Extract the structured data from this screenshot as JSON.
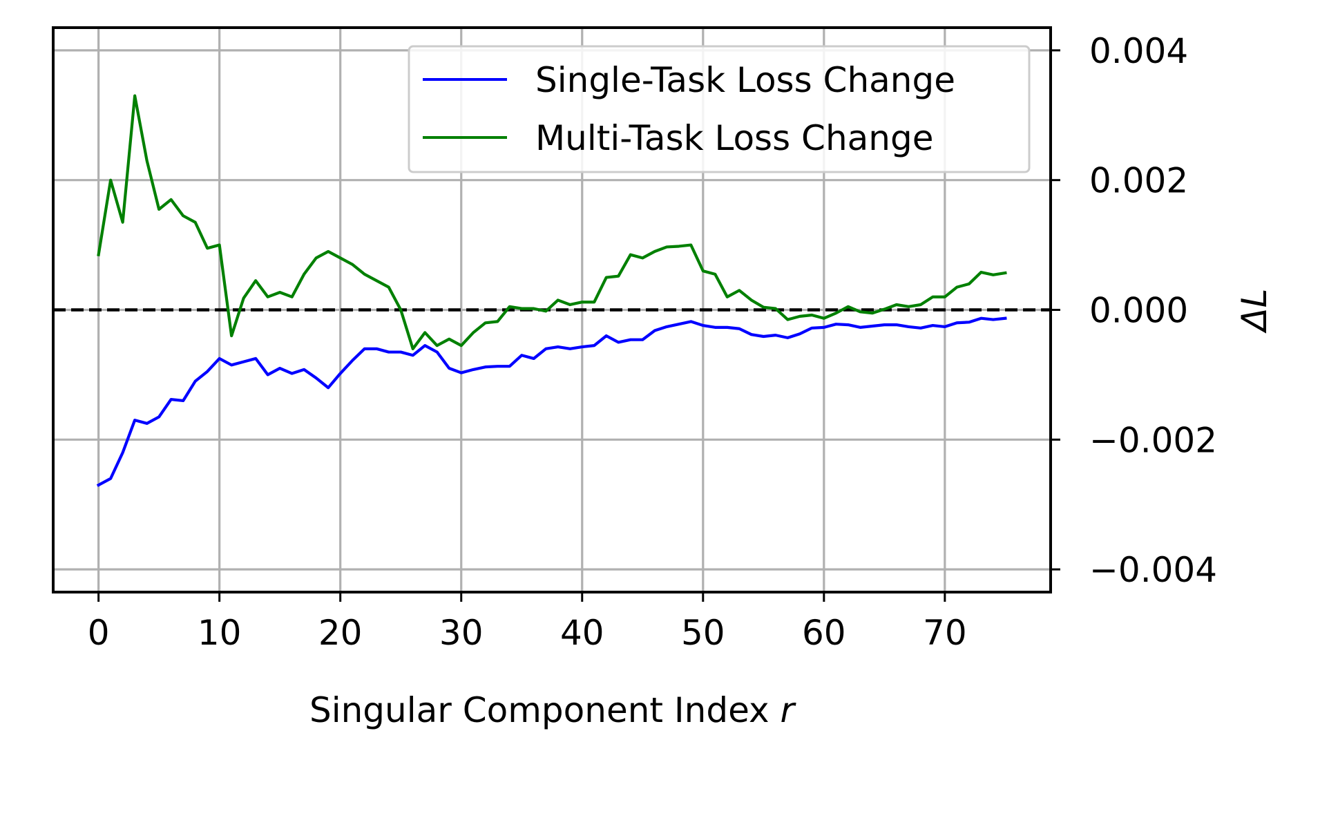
{
  "chart_data": {
    "type": "line",
    "xlabel_text": "Singular Component Index ",
    "xlabel_var": "r",
    "ylabel": "ΔL",
    "y_axis_side": "right",
    "xlim": [
      -3.75,
      78.75
    ],
    "ylim": [
      -0.00435,
      0.00435
    ],
    "xticks": [
      0,
      10,
      20,
      30,
      40,
      50,
      60,
      70
    ],
    "yticks": [
      0.004,
      0.002,
      0.0,
      -0.002,
      -0.004
    ],
    "ytick_labels": [
      "0.004",
      "0.002",
      "0.000",
      "−0.002",
      "−0.004"
    ],
    "grid": true,
    "reference_line": {
      "y": 0.0,
      "style": "dashed",
      "color": "#000000"
    },
    "legend_position": "top-right",
    "series": [
      {
        "name": "Single-Task Loss Change",
        "color": "#0000ff",
        "x": [
          0,
          1,
          2,
          3,
          4,
          5,
          6,
          7,
          8,
          9,
          10,
          11,
          12,
          13,
          14,
          15,
          16,
          17,
          18,
          19,
          20,
          21,
          22,
          23,
          24,
          25,
          26,
          27,
          28,
          29,
          30,
          31,
          32,
          33,
          34,
          35,
          36,
          37,
          38,
          39,
          40,
          41,
          42,
          43,
          44,
          45,
          46,
          47,
          48,
          49,
          50,
          51,
          52,
          53,
          54,
          55,
          56,
          57,
          58,
          59,
          60,
          61,
          62,
          63,
          64,
          65,
          66,
          67,
          68,
          69,
          70,
          71,
          72,
          73,
          74,
          75
        ],
        "values": [
          -0.0027,
          -0.0026,
          -0.0022,
          -0.0017,
          -0.00175,
          -0.00165,
          -0.00138,
          -0.0014,
          -0.0011,
          -0.00095,
          -0.00075,
          -0.00085,
          -0.0008,
          -0.00075,
          -0.001,
          -0.0009,
          -0.00098,
          -0.00092,
          -0.00105,
          -0.0012,
          -0.00098,
          -0.00078,
          -0.0006,
          -0.0006,
          -0.00065,
          -0.00065,
          -0.0007,
          -0.00055,
          -0.00065,
          -0.0009,
          -0.00097,
          -0.00092,
          -0.00088,
          -0.00087,
          -0.00087,
          -0.0007,
          -0.00075,
          -0.0006,
          -0.00057,
          -0.0006,
          -0.00057,
          -0.00055,
          -0.0004,
          -0.0005,
          -0.00046,
          -0.00046,
          -0.00032,
          -0.00026,
          -0.00022,
          -0.00018,
          -0.00024,
          -0.00027,
          -0.00027,
          -0.00029,
          -0.00038,
          -0.00041,
          -0.00039,
          -0.00043,
          -0.00037,
          -0.00028,
          -0.00027,
          -0.00022,
          -0.00023,
          -0.00027,
          -0.00025,
          -0.00023,
          -0.00023,
          -0.00026,
          -0.00028,
          -0.00024,
          -0.00026,
          -0.0002,
          -0.00019,
          -0.00013,
          -0.00015,
          -0.00013
        ]
      },
      {
        "name": "Multi-Task Loss Change",
        "color": "#008000",
        "x": [
          0,
          1,
          2,
          3,
          4,
          5,
          6,
          7,
          8,
          9,
          10,
          11,
          12,
          13,
          14,
          15,
          16,
          17,
          18,
          19,
          20,
          21,
          22,
          23,
          24,
          25,
          26,
          27,
          28,
          29,
          30,
          31,
          32,
          33,
          34,
          35,
          36,
          37,
          38,
          39,
          40,
          41,
          42,
          43,
          44,
          45,
          46,
          47,
          48,
          49,
          50,
          51,
          52,
          53,
          54,
          55,
          56,
          57,
          58,
          59,
          60,
          61,
          62,
          63,
          64,
          65,
          66,
          67,
          68,
          69,
          70,
          71,
          72,
          73,
          74,
          75
        ],
        "values": [
          0.00085,
          0.002,
          0.00135,
          0.0033,
          0.0023,
          0.00155,
          0.0017,
          0.00145,
          0.00135,
          0.00095,
          0.001,
          -0.0004,
          0.00018,
          0.00045,
          0.0002,
          0.00027,
          0.0002,
          0.00055,
          0.0008,
          0.0009,
          0.0008,
          0.0007,
          0.00055,
          0.00045,
          0.00035,
          0.0,
          -0.0006,
          -0.00035,
          -0.00055,
          -0.00045,
          -0.00055,
          -0.00035,
          -0.0002,
          -0.00018,
          5e-05,
          2e-05,
          2e-05,
          -2e-05,
          0.00015,
          8e-05,
          0.00012,
          0.00012,
          0.0005,
          0.00052,
          0.00085,
          0.0008,
          0.0009,
          0.00097,
          0.00098,
          0.001,
          0.0006,
          0.00055,
          0.0002,
          0.0003,
          0.00015,
          4e-05,
          2e-05,
          -0.00015,
          -0.0001,
          -8e-05,
          -0.00013,
          -5e-05,
          5e-05,
          -3e-05,
          -5e-05,
          1e-05,
          8e-05,
          5e-05,
          8e-05,
          0.0002,
          0.0002,
          0.00035,
          0.0004,
          0.00058,
          0.00054,
          0.00057
        ]
      }
    ]
  }
}
